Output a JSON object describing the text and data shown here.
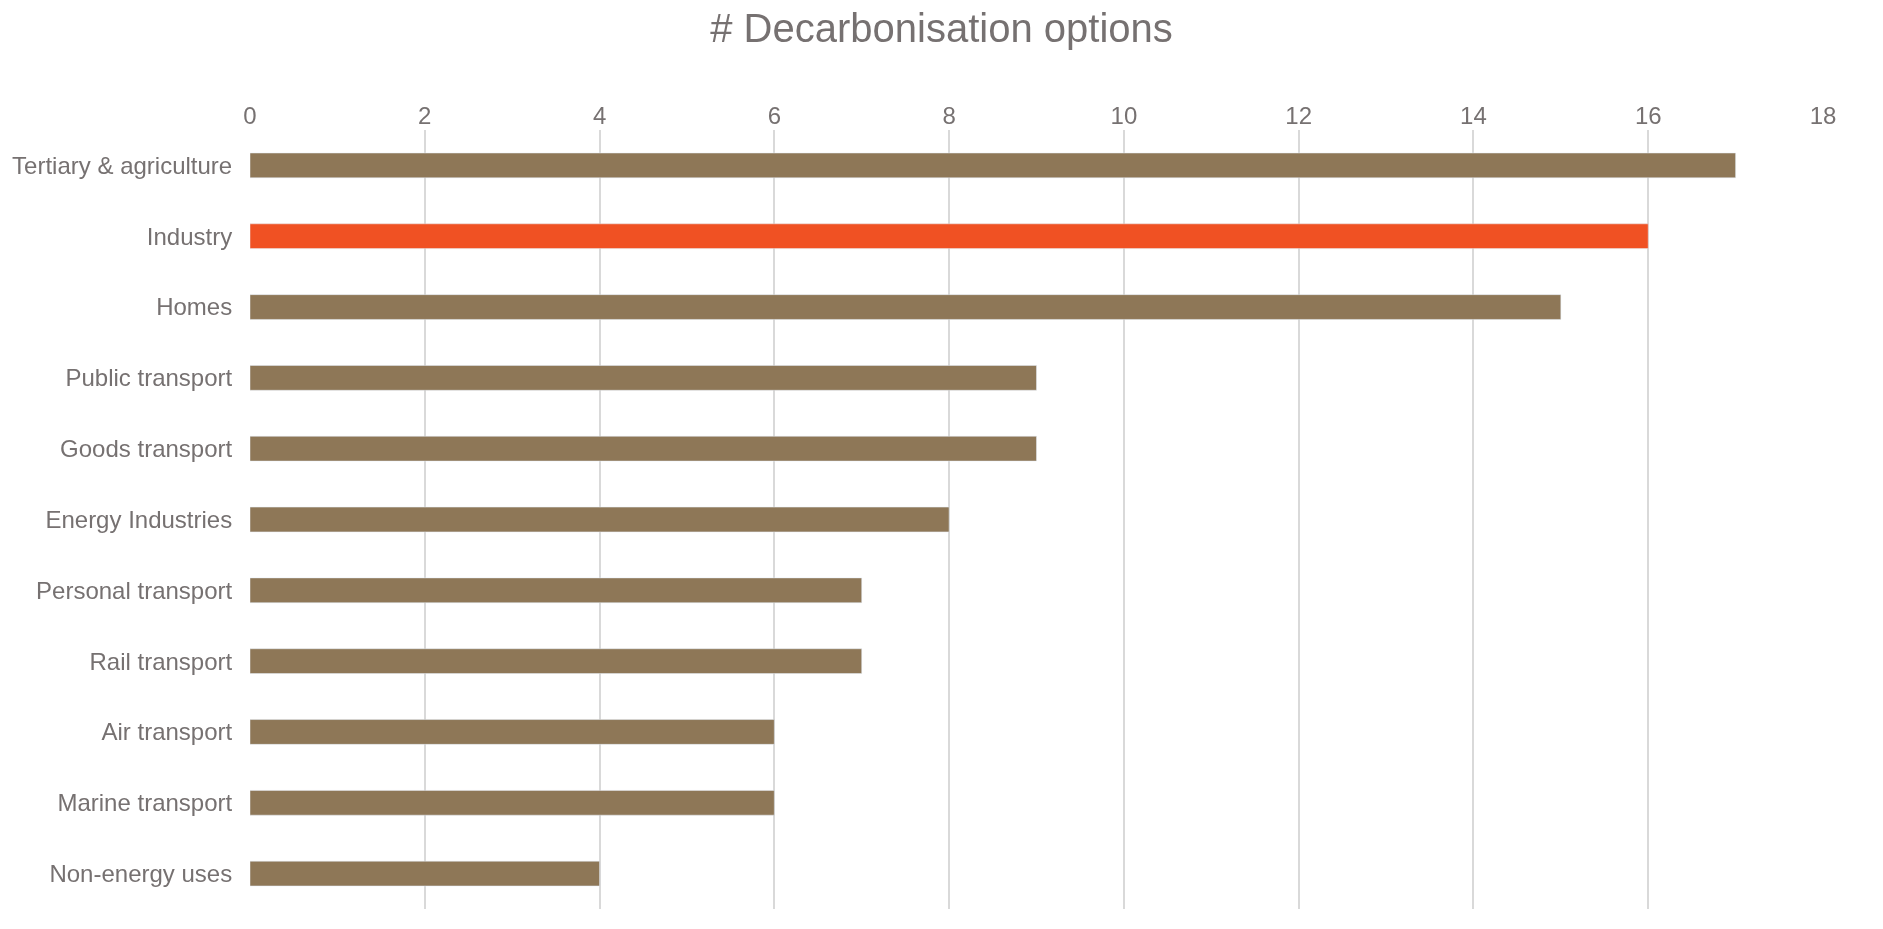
{
  "chart_data": {
    "type": "bar",
    "orientation": "horizontal",
    "title": "# Decarbonisation options",
    "categories": [
      "Tertiary & agriculture",
      "Industry",
      "Homes",
      "Public transport",
      "Goods transport",
      "Energy Industries",
      "Personal transport",
      "Rail transport",
      "Air transport",
      "Marine transport",
      "Non-energy uses"
    ],
    "values": [
      17,
      16,
      15,
      9,
      9,
      8,
      7,
      7,
      6,
      6,
      4
    ],
    "colors": [
      "#8e7757",
      "#f05123",
      "#8e7757",
      "#8e7757",
      "#8e7757",
      "#8e7757",
      "#8e7757",
      "#8e7757",
      "#8e7757",
      "#8e7757",
      "#8e7757"
    ],
    "xlim": [
      0,
      18
    ],
    "xticks": [
      0,
      2,
      4,
      6,
      8,
      10,
      12,
      14,
      16,
      18
    ],
    "grid": "x"
  }
}
